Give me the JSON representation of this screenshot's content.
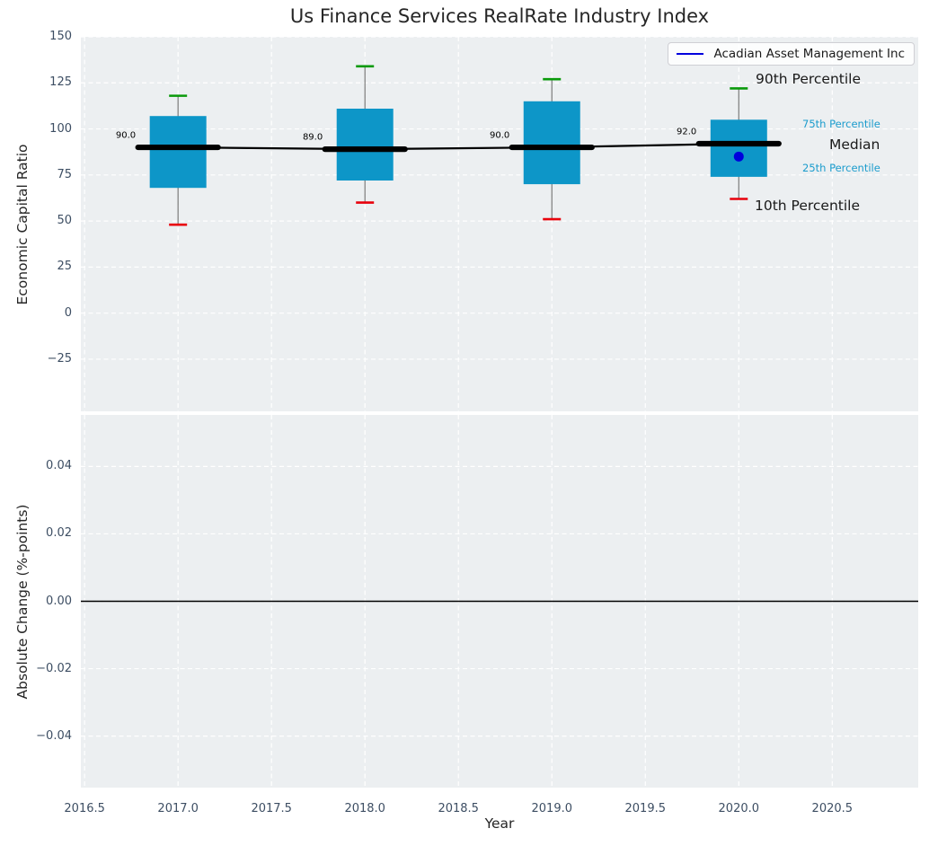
{
  "figure": {
    "title": "Us Finance Services RealRate Industry Index"
  },
  "colors": {
    "box_fill": "#0D96C8",
    "median_line": "#000000",
    "median_trend_line": "#000000",
    "whisker": "#7a7a7a",
    "p90_cap": "#0a9a0a",
    "p10_cap": "#e8000b",
    "company_line": "#0000DD",
    "panel_background": "#ECEFF1",
    "gridline": "#FFFFFF",
    "zero_line": "#000000",
    "tick_label": "#3d4e63",
    "percentile_label": "#1b9ccd"
  },
  "legend": {
    "items": [
      {
        "label": "Acadian Asset Management Inc",
        "color": "#0000DD"
      }
    ]
  },
  "annotations": {
    "p90": "90th Percentile",
    "p75": "75th Percentile",
    "median": "Median",
    "p25": "25th Percentile",
    "p10": "10th Percentile"
  },
  "chart_data": [
    {
      "type": "boxplot",
      "title": "Us Finance Services RealRate Industry Index",
      "xlabel": "Year",
      "ylabel": "Economic Capital Ratio",
      "xlim": [
        2016.48,
        2020.96
      ],
      "ylim": [
        -53.3,
        150
      ],
      "grid": true,
      "legend_position": "upper right",
      "legend_entries": [
        "Acadian Asset Management Inc"
      ],
      "xticks": [
        {
          "v": 2016.5,
          "label": "2016.5"
        },
        {
          "v": 2017.0,
          "label": "2017.0"
        },
        {
          "v": 2017.5,
          "label": "2017.5"
        },
        {
          "v": 2018.0,
          "label": "2018.0"
        },
        {
          "v": 2018.5,
          "label": "2018.5"
        },
        {
          "v": 2019.0,
          "label": "2019.0"
        },
        {
          "v": 2019.5,
          "label": "2019.5"
        },
        {
          "v": 2020.0,
          "label": "2020.0"
        },
        {
          "v": 2020.5,
          "label": "2020.5"
        }
      ],
      "yticks": [
        {
          "v": 150,
          "label": "150"
        },
        {
          "v": 125,
          "label": "125"
        },
        {
          "v": 100,
          "label": "100"
        },
        {
          "v": 75,
          "label": "75"
        },
        {
          "v": 50,
          "label": "50"
        },
        {
          "v": 25,
          "label": "25"
        },
        {
          "v": 0,
          "label": "0"
        },
        {
          "v": -25,
          "label": "−25"
        }
      ],
      "boxes": [
        {
          "x": 2017,
          "p10": 48,
          "q1": 68,
          "median": 90,
          "q3": 107,
          "p90": 118,
          "median_label": "90.0"
        },
        {
          "x": 2018,
          "p10": 60,
          "q1": 72,
          "median": 89,
          "q3": 111,
          "p90": 134,
          "median_label": "89.0"
        },
        {
          "x": 2019,
          "p10": 51,
          "q1": 70,
          "median": 90,
          "q3": 115,
          "p90": 127,
          "median_label": "90.0"
        },
        {
          "x": 2020,
          "p10": 62,
          "q1": 74,
          "median": 92,
          "q3": 105,
          "p90": 122,
          "median_label": "92.0"
        }
      ],
      "median_trend": [
        90,
        89,
        90,
        92
      ],
      "company_series": {
        "name": "Acadian Asset Management Inc",
        "points": [
          {
            "x": 2020,
            "y": 85
          }
        ]
      },
      "percentile_annotations": [
        "90th Percentile",
        "75th Percentile",
        "Median",
        "25th Percentile",
        "10th Percentile"
      ]
    },
    {
      "type": "line",
      "xlabel": "Year",
      "ylabel": "Absolute Change (%-points)",
      "xlim": [
        2016.48,
        2020.96
      ],
      "ylim": [
        -0.0553,
        0.0553
      ],
      "grid": true,
      "zero_line": 0.0,
      "xticks": [
        {
          "v": 2016.5,
          "label": "2016.5"
        },
        {
          "v": 2017.0,
          "label": "2017.0"
        },
        {
          "v": 2017.5,
          "label": "2017.5"
        },
        {
          "v": 2018.0,
          "label": "2018.0"
        },
        {
          "v": 2018.5,
          "label": "2018.5"
        },
        {
          "v": 2019.0,
          "label": "2019.0"
        },
        {
          "v": 2019.5,
          "label": "2019.5"
        },
        {
          "v": 2020.0,
          "label": "2020.0"
        },
        {
          "v": 2020.5,
          "label": "2020.5"
        }
      ],
      "yticks": [
        {
          "v": 0.04,
          "label": "0.04"
        },
        {
          "v": 0.02,
          "label": "0.02"
        },
        {
          "v": 0.0,
          "label": "0.00"
        },
        {
          "v": -0.02,
          "label": "−0.02"
        },
        {
          "v": -0.04,
          "label": "−0.04"
        }
      ],
      "series": []
    }
  ]
}
